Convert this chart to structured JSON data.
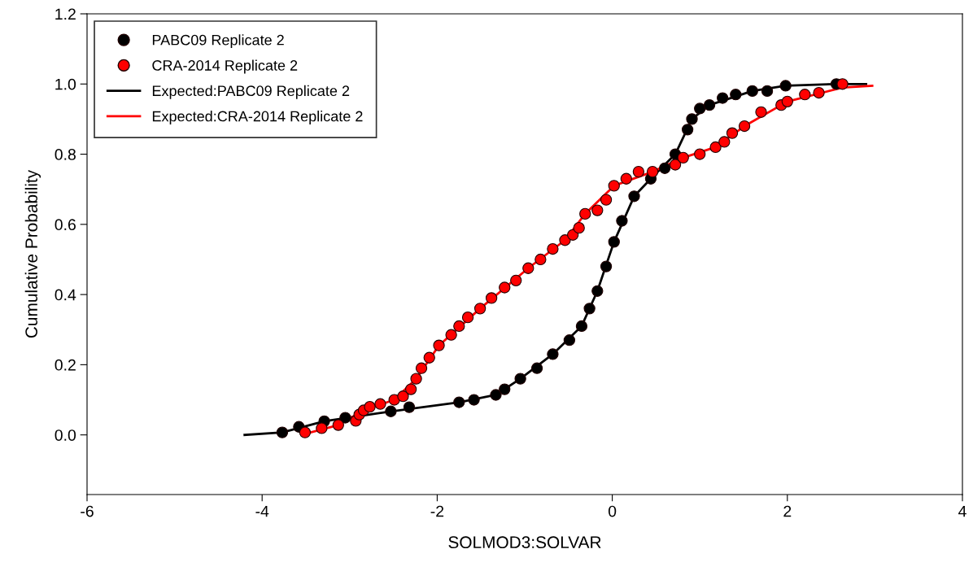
{
  "chart_data": {
    "type": "scatter",
    "xlabel": "SOLMOD3:SOLVAR",
    "ylabel": "Cumulative Probability",
    "xlim": [
      -6,
      4
    ],
    "xticks": [
      -6,
      -4,
      -2,
      0,
      2,
      4
    ],
    "ylim": [
      -0.17,
      1.2
    ],
    "yticks": [
      {
        "value": 0,
        "label": "0.0"
      },
      0.2,
      0.4,
      0.6,
      0.8,
      {
        "value": 1,
        "label": "1.0"
      },
      1.2
    ],
    "grid": false,
    "legend": "top left",
    "marker": "circle",
    "series": [
      {
        "name": "PABC09 Replicate 2",
        "color": "#000000",
        "x": [
          -3.77,
          -3.58,
          -3.29,
          -3.05,
          -2.53,
          -2.32,
          -1.75,
          -1.58,
          -1.33,
          -1.23,
          -1.05,
          -0.86,
          -0.68,
          -0.49,
          -0.35,
          -0.26,
          -0.17,
          -0.07,
          0.02,
          0.11,
          0.25,
          0.44,
          0.6,
          0.72,
          0.86,
          0.91,
          1.0,
          1.11,
          1.26,
          1.41,
          1.6,
          1.77,
          1.98,
          2.56
        ],
        "values": [
          0.007,
          0.023,
          0.039,
          0.049,
          0.067,
          0.079,
          0.093,
          0.1,
          0.114,
          0.13,
          0.16,
          0.19,
          0.23,
          0.27,
          0.31,
          0.36,
          0.41,
          0.48,
          0.55,
          0.61,
          0.68,
          0.73,
          0.76,
          0.8,
          0.87,
          0.9,
          0.93,
          0.94,
          0.96,
          0.97,
          0.98,
          0.98,
          0.995,
          1.0
        ]
      },
      {
        "name": "CRA-2014 Replicate 2",
        "color": "#ff0000",
        "x": [
          -3.51,
          -3.32,
          -3.13,
          -2.93,
          -2.89,
          -2.84,
          -2.77,
          -2.65,
          -2.49,
          -2.39,
          -2.3,
          -2.24,
          -2.18,
          -2.09,
          -1.98,
          -1.84,
          -1.75,
          -1.65,
          -1.51,
          -1.38,
          -1.23,
          -1.1,
          -0.96,
          -0.82,
          -0.68,
          -0.54,
          -0.45,
          -0.38,
          -0.31,
          -0.17,
          -0.07,
          0.02,
          0.16,
          0.3,
          0.46,
          0.72,
          0.81,
          1.0,
          1.18,
          1.28,
          1.37,
          1.51,
          1.7,
          1.93,
          2.0,
          2.2,
          2.36,
          2.63
        ],
        "values": [
          0.007,
          0.019,
          0.028,
          0.04,
          0.058,
          0.07,
          0.08,
          0.088,
          0.1,
          0.11,
          0.13,
          0.16,
          0.19,
          0.22,
          0.255,
          0.285,
          0.31,
          0.335,
          0.36,
          0.39,
          0.42,
          0.44,
          0.475,
          0.5,
          0.53,
          0.555,
          0.57,
          0.59,
          0.63,
          0.64,
          0.67,
          0.71,
          0.73,
          0.75,
          0.75,
          0.77,
          0.79,
          0.8,
          0.82,
          0.835,
          0.86,
          0.88,
          0.92,
          0.94,
          0.95,
          0.97,
          0.975,
          1.0
        ]
      },
      {
        "name": "Expected:PABC09 Replicate 2",
        "type": "line",
        "marker": "none",
        "color": "#000000",
        "x": [
          -4.2,
          -3.77,
          -3.29,
          -2.53,
          -1.75,
          -1.33,
          -1.05,
          -0.68,
          -0.35,
          -0.17,
          0.02,
          0.25,
          0.44,
          0.72,
          0.91,
          1.11,
          1.6,
          1.98,
          2.56,
          2.9
        ],
        "values": [
          0.0,
          0.007,
          0.039,
          0.067,
          0.093,
          0.114,
          0.16,
          0.23,
          0.31,
          0.41,
          0.55,
          0.68,
          0.73,
          0.8,
          0.9,
          0.94,
          0.98,
          0.995,
          1.0,
          1.0
        ]
      },
      {
        "name": "Expected:CRA-2014 Replicate 2",
        "type": "line",
        "marker": "none",
        "color": "#ff0000",
        "x": [
          -3.55,
          -3.13,
          -2.84,
          -2.49,
          -2.24,
          -1.98,
          -1.51,
          -0.96,
          -0.54,
          -0.31,
          0.02,
          0.46,
          0.81,
          1.18,
          1.51,
          2.0,
          2.63,
          2.97
        ],
        "values": [
          0.0,
          0.028,
          0.07,
          0.1,
          0.16,
          0.255,
          0.36,
          0.475,
          0.555,
          0.63,
          0.71,
          0.75,
          0.79,
          0.82,
          0.88,
          0.95,
          0.99,
          0.995
        ]
      }
    ]
  }
}
